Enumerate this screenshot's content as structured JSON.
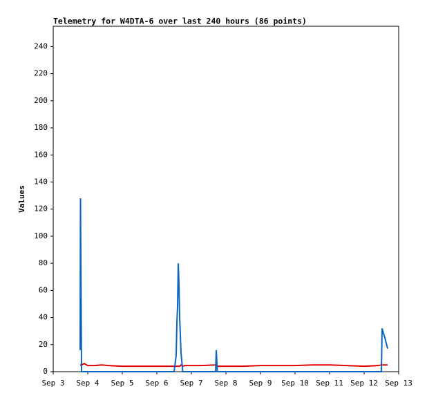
{
  "chart_data": {
    "type": "line",
    "title": "Telemetry for W4DTA-6 over last 240 hours (86 points)",
    "y_label": "Values",
    "x": [
      3.78,
      3.79,
      3.82,
      3.9,
      4.0,
      4.2,
      4.4,
      4.6,
      5.0,
      5.5,
      6.0,
      6.5,
      6.56,
      6.58,
      6.6,
      6.62,
      6.64,
      6.66,
      6.7,
      6.75,
      6.8,
      7.0,
      7.3,
      7.7,
      7.72,
      7.75,
      8.0,
      8.5,
      9.0,
      9.5,
      10.0,
      10.5,
      11.0,
      11.5,
      12.0,
      12.4,
      12.5,
      12.52,
      12.6,
      12.68
    ],
    "series": [
      {
        "color": "#e00000",
        "values": [
          5,
          5,
          5,
          6,
          4.5,
          4.5,
          5,
          4.5,
          4,
          4,
          4,
          4,
          4,
          4,
          4,
          4,
          4,
          4,
          5,
          4,
          4.5,
          4.5,
          4.5,
          5,
          5,
          4,
          4,
          4,
          4.5,
          4.5,
          4.5,
          5,
          5,
          4.5,
          4,
          4.5,
          5,
          5,
          5,
          5
        ]
      },
      {
        "color": "#0a64c0",
        "values": [
          16,
          128,
          0,
          0,
          0,
          0,
          0,
          0,
          0,
          0,
          0,
          0,
          12,
          36,
          48,
          80,
          65,
          40,
          14,
          0,
          0,
          0,
          0,
          0,
          16,
          0,
          0,
          0,
          0,
          0,
          0,
          0,
          0,
          0,
          0,
          0,
          0,
          32,
          25,
          17
        ]
      }
    ],
    "xlim": [
      3,
      13
    ],
    "xticks": [
      {
        "value": 3,
        "label": "Sep 3"
      },
      {
        "value": 4,
        "label": "Sep 4"
      },
      {
        "value": 5,
        "label": "Sep 5"
      },
      {
        "value": 6,
        "label": "Sep 6"
      },
      {
        "value": 7,
        "label": "Sep 7"
      },
      {
        "value": 8,
        "label": "Sep 8"
      },
      {
        "value": 9,
        "label": "Sep 9"
      },
      {
        "value": 10,
        "label": "Sep 10"
      },
      {
        "value": 11,
        "label": "Sep 11"
      },
      {
        "value": 12,
        "label": "Sep 12"
      },
      {
        "value": 13,
        "label": "Sep 13"
      }
    ],
    "ylim": [
      0,
      255
    ],
    "yticks": [
      0,
      20,
      40,
      60,
      80,
      100,
      120,
      140,
      160,
      180,
      200,
      220,
      240
    ],
    "grid": false
  }
}
